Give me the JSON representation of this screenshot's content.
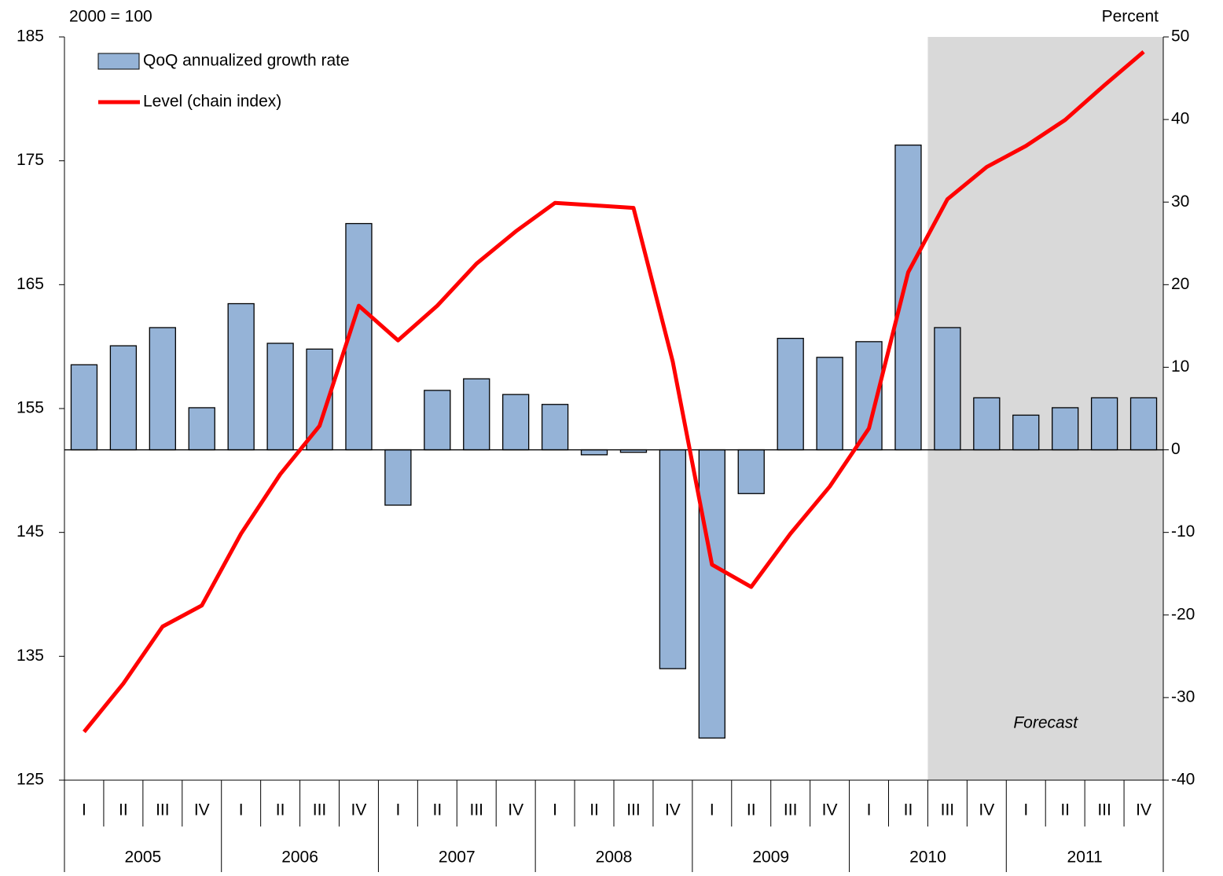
{
  "chart_data": {
    "type": "bar_line",
    "y_unit_label": "2000 = 100",
    "y2_unit_label": "Percent",
    "categories": [
      "I",
      "II",
      "III",
      "IV",
      "I",
      "II",
      "III",
      "IV",
      "I",
      "II",
      "III",
      "IV",
      "I",
      "II",
      "III",
      "IV",
      "I",
      "II",
      "III",
      "IV",
      "I",
      "II",
      "III",
      "IV",
      "I",
      "II",
      "III",
      "IV"
    ],
    "years": [
      "2005",
      "2006",
      "2007",
      "2008",
      "2009",
      "2010",
      "2011"
    ],
    "series": [
      {
        "name": "QoQ annualized growth rate",
        "kind": "bar",
        "axis": "y2",
        "color": "#95b3d7",
        "values": [
          10.3,
          12.6,
          14.8,
          5.1,
          17.7,
          12.9,
          12.2,
          27.4,
          -6.7,
          7.2,
          8.6,
          6.7,
          5.5,
          -0.6,
          -0.3,
          -26.5,
          -34.9,
          -5.3,
          13.5,
          11.2,
          13.1,
          36.9,
          14.8,
          6.3,
          4.2,
          5.1,
          6.3,
          6.3
        ]
      },
      {
        "name": "Level (chain index)",
        "kind": "line",
        "axis": "y",
        "color": "#ff0000",
        "values": [
          128.9,
          132.8,
          137.4,
          139.1,
          144.9,
          149.7,
          153.6,
          163.3,
          160.5,
          163.3,
          166.7,
          169.3,
          171.6,
          171.4,
          171.2,
          158.8,
          142.4,
          140.6,
          144.9,
          148.7,
          153.4,
          166.0,
          171.9,
          174.5,
          176.2,
          178.3,
          181.1,
          183.8
        ]
      }
    ],
    "forecast": {
      "label": "Forecast",
      "start": 22,
      "color": "#d9d9d9"
    },
    "ylim": [
      125,
      185
    ],
    "yticks": [
      125,
      135,
      145,
      155,
      165,
      175,
      185
    ],
    "y2lim": [
      -40,
      50
    ],
    "y2ticks": [
      -40,
      -30,
      -20,
      -10,
      0,
      10,
      20,
      30,
      40,
      50
    ],
    "legend": "top-left"
  }
}
